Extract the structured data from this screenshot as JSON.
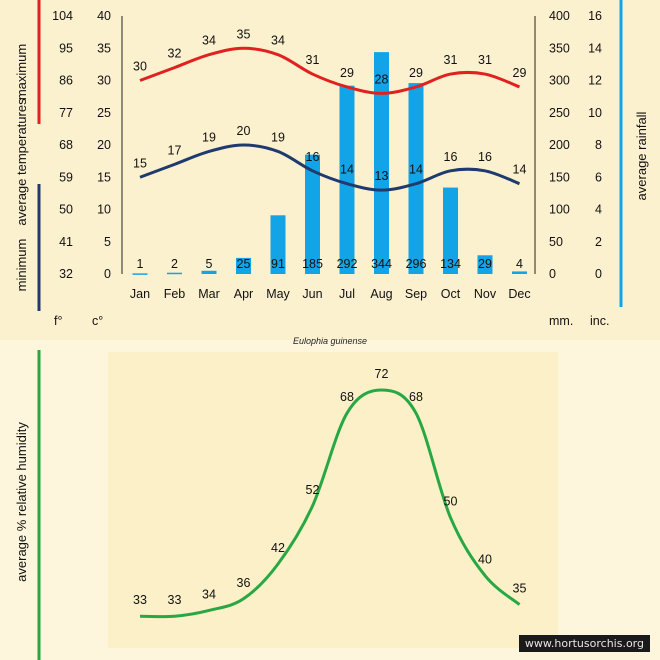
{
  "species": "Eulophia guinense",
  "credit": "www.hortusorchis.org",
  "colors": {
    "max": "#e0211f",
    "min": "#1f3a6e",
    "rain": "#12a4e6",
    "humidity": "#27a845",
    "humidity_axis": "#29a63d"
  },
  "labels": {
    "maximum": "maximum",
    "average_temps": "average temperatures",
    "minimum": "minimum",
    "average_rainfall": "average rainfall",
    "humidity": "average % relative humidity",
    "unit_f": "f°",
    "unit_c": "c°",
    "unit_mm": "mm.",
    "unit_inch": "inc."
  },
  "chart_data": [
    {
      "type": "line+bar",
      "categories": [
        "Jan",
        "Feb",
        "Mar",
        "Apr",
        "May",
        "Jun",
        "Jul",
        "Aug",
        "Sep",
        "Oct",
        "Nov",
        "Dec"
      ],
      "series": [
        {
          "name": "maximum",
          "kind": "line",
          "axis": "celsius",
          "values": [
            30,
            32,
            34,
            35,
            34,
            31,
            29,
            28,
            29,
            31,
            31,
            29
          ]
        },
        {
          "name": "minimum",
          "kind": "line",
          "axis": "celsius",
          "values": [
            15,
            17,
            19,
            20,
            19,
            16,
            14,
            13,
            14,
            16,
            16,
            14
          ]
        },
        {
          "name": "average rainfall",
          "kind": "bar",
          "axis": "mm",
          "values": [
            1,
            2,
            5,
            25,
            91,
            185,
            292,
            344,
            296,
            134,
            29,
            4
          ]
        }
      ],
      "axes": {
        "fahrenheit": {
          "ticks": [
            "104",
            "95",
            "86",
            "77",
            "68",
            "59",
            "50",
            "41",
            "32"
          ]
        },
        "celsius": {
          "ylim": [
            0,
            40
          ],
          "ticks": [
            "40",
            "35",
            "30",
            "25",
            "20",
            "15",
            "10",
            "5",
            "0"
          ]
        },
        "mm": {
          "ylim": [
            0,
            400
          ],
          "ticks": [
            "400",
            "350",
            "300",
            "250",
            "200",
            "150",
            "100",
            "50",
            "0"
          ]
        },
        "inch": {
          "ylim": [
            0,
            16
          ],
          "ticks": [
            "16",
            "14",
            "12",
            "10",
            "8",
            "6",
            "4",
            "2",
            "0"
          ]
        }
      },
      "grid": false
    },
    {
      "type": "line",
      "categories": [
        "Jan",
        "Feb",
        "Mar",
        "Apr",
        "May",
        "Jun",
        "Jul",
        "Aug",
        "Sep",
        "Oct",
        "Nov",
        "Dec"
      ],
      "series": [
        {
          "name": "average % relative humidity",
          "values": [
            33,
            33,
            34,
            36,
            42,
            52,
            68,
            72,
            68,
            50,
            40,
            35
          ]
        }
      ],
      "grid": false
    }
  ]
}
